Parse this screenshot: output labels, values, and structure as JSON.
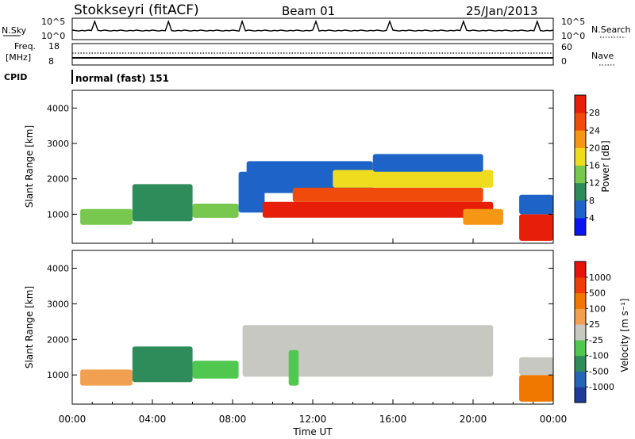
{
  "header": {
    "station": "Stokkseyri (fitACF)",
    "beam": "Beam 01",
    "date": "25/Jan/2013"
  },
  "status_panels": {
    "nsky_label": "N.Sky",
    "nsearch_label": "N.Search",
    "freq_label_1": "Freq.",
    "freq_label_2": "[MHz]",
    "nave_label": "Nave",
    "cpid_label": "CPID",
    "cpid_value": "normal (fast) 151",
    "nsky_ticks": [
      "10^5",
      "10^0"
    ],
    "nsearch_ticks": [
      "10^5",
      "10^0"
    ],
    "freq_ticks": [
      "18",
      "8"
    ],
    "nave_ticks": [
      "60",
      "0"
    ]
  },
  "x_axis": {
    "title": "Time UT",
    "tick_labels": [
      "00:00",
      "04:00",
      "08:00",
      "12:00",
      "16:00",
      "20:00",
      "00:00"
    ]
  },
  "chart_data": [
    {
      "type": "heatmap",
      "name": "power",
      "ylabel": "Slant Range [km]",
      "ylim": [
        180,
        4500
      ],
      "yticks": [
        1000,
        2000,
        3000,
        4000
      ],
      "xlim_hours": [
        0,
        24
      ],
      "colorbar": {
        "label": "Power [dB]",
        "tick_labels": [
          "4",
          "8",
          "12",
          "16",
          "20",
          "24",
          "28"
        ],
        "colors": [
          "#0a14f0",
          "#1e64c8",
          "#2e8c5a",
          "#78c850",
          "#f0dc1e",
          "#f59614",
          "#f04b0a",
          "#e61e0a"
        ]
      },
      "regions": [
        {
          "t_start": 0.4,
          "t_end": 3.0,
          "r_min": 700,
          "r_max": 1150,
          "level": 3
        },
        {
          "t_start": 3.0,
          "t_end": 6.0,
          "r_min": 800,
          "r_max": 1850,
          "level": 2
        },
        {
          "t_start": 6.0,
          "t_end": 8.3,
          "r_min": 900,
          "r_max": 1300,
          "level": 3
        },
        {
          "t_start": 8.3,
          "t_end": 9.6,
          "r_min": 1050,
          "r_max": 2200,
          "level": 1
        },
        {
          "t_start": 8.7,
          "t_end": 15.0,
          "r_min": 1600,
          "r_max": 2500,
          "level": 1
        },
        {
          "t_start": 9.5,
          "t_end": 21.0,
          "r_min": 900,
          "r_max": 1350,
          "level": 7
        },
        {
          "t_start": 11.0,
          "t_end": 20.5,
          "r_min": 1350,
          "r_max": 1750,
          "level": 6
        },
        {
          "t_start": 13.0,
          "t_end": 21.0,
          "r_min": 1750,
          "r_max": 2250,
          "level": 4
        },
        {
          "t_start": 15.0,
          "t_end": 20.5,
          "r_min": 2200,
          "r_max": 2700,
          "level": 1
        },
        {
          "t_start": 19.5,
          "t_end": 21.5,
          "r_min": 700,
          "r_max": 1150,
          "level": 5
        },
        {
          "t_start": 22.3,
          "t_end": 24.0,
          "r_min": 250,
          "r_max": 1000,
          "level": 7
        },
        {
          "t_start": 22.3,
          "t_end": 24.0,
          "r_min": 1000,
          "r_max": 1550,
          "level": 1
        }
      ]
    },
    {
      "type": "heatmap",
      "name": "velocity",
      "ylabel": "Slant Range [km]",
      "ylim": [
        180,
        4500
      ],
      "yticks": [
        1000,
        2000,
        3000,
        4000
      ],
      "xlim_hours": [
        0,
        24
      ],
      "colorbar": {
        "label": "Velocity [m s⁻¹]",
        "tick_labels": [
          "1000",
          "500",
          "100",
          "25",
          "-25",
          "-100",
          "-500",
          "-1000"
        ],
        "colors": [
          "#1e3c96",
          "#2864b4",
          "#2e8c5a",
          "#50c850",
          "#c8c8c3",
          "#f0a050",
          "#f07800",
          "#f03c0a",
          "#e6140a"
        ]
      },
      "regions": [
        {
          "t_start": 0.4,
          "t_end": 3.0,
          "r_min": 700,
          "r_max": 1150,
          "level": 5
        },
        {
          "t_start": 3.0,
          "t_end": 6.0,
          "r_min": 800,
          "r_max": 1800,
          "level": 2
        },
        {
          "t_start": 6.0,
          "t_end": 8.3,
          "r_min": 900,
          "r_max": 1400,
          "level": 3
        },
        {
          "t_start": 8.5,
          "t_end": 21.0,
          "r_min": 950,
          "r_max": 2400,
          "level": 4
        },
        {
          "t_start": 10.8,
          "t_end": 11.3,
          "r_min": 700,
          "r_max": 1700,
          "level": 3
        },
        {
          "t_start": 22.3,
          "t_end": 24.0,
          "r_min": 250,
          "r_max": 1000,
          "level": 6
        },
        {
          "t_start": 22.3,
          "t_end": 24.0,
          "r_min": 1000,
          "r_max": 1500,
          "level": 4
        }
      ]
    }
  ]
}
